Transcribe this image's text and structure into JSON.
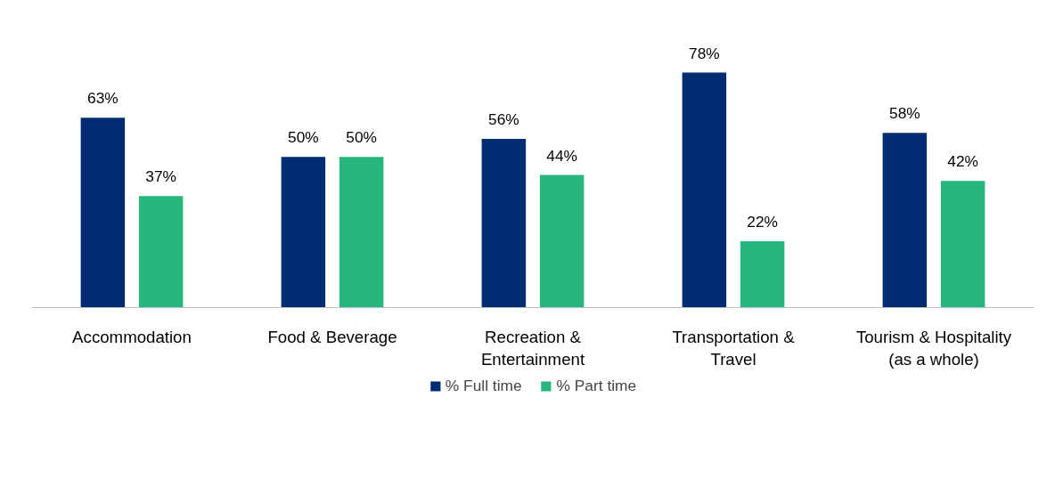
{
  "chart_data": {
    "type": "bar",
    "categories": [
      "Accommodation",
      "Food & Beverage",
      "Recreation &\nEntertainment",
      "Transportation &\nTravel",
      "Tourism & Hospitality\n(as a whole)"
    ],
    "series": [
      {
        "name": "% Full time",
        "color": "#002d72",
        "values": [
          63,
          50,
          56,
          78,
          58
        ],
        "value_labels": [
          "63%",
          "50%",
          "56%",
          "78%",
          "58%"
        ]
      },
      {
        "name": "% Part time",
        "color": "#27b67b",
        "values": [
          37,
          50,
          44,
          22,
          42
        ],
        "value_labels": [
          "37%",
          "50%",
          "44%",
          "22%",
          "42%"
        ]
      }
    ],
    "tick_labels": "x",
    "legend": "bottom"
  }
}
